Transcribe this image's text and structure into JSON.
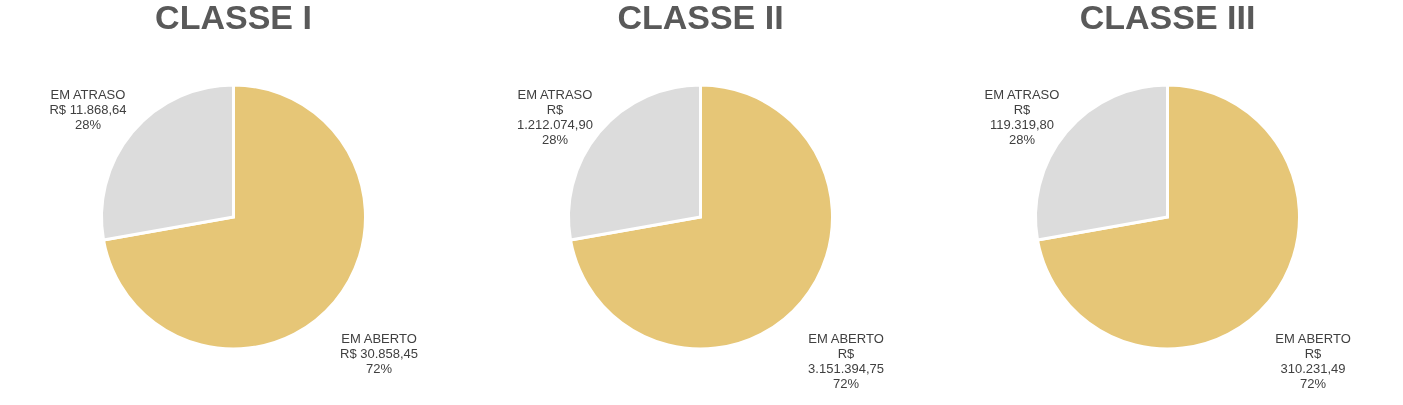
{
  "chart_data": [
    {
      "type": "pie",
      "title": "CLASSE I",
      "categories": [
        "EM ABERTO",
        "EM ATRASO"
      ],
      "values": [
        30858.45,
        11868.64
      ],
      "colors": [
        "#e6c677",
        "#dcdcdc"
      ],
      "value_labels": [
        "R$ 30.858,45\n72%",
        "R$ 11.868,64\n28%"
      ]
    },
    {
      "type": "pie",
      "title": "CLASSE II",
      "categories": [
        "EM ABERTO",
        "EM ATRASO"
      ],
      "values": [
        3151394.75,
        1212074.9
      ],
      "colors": [
        "#e6c677",
        "#dcdcdc"
      ],
      "value_labels": [
        "R$\n3.151.394,75\n72%",
        "R$\n1.212.074,90\n28%"
      ]
    },
    {
      "type": "pie",
      "title": "CLASSE III",
      "categories": [
        "EM ABERTO",
        "EM ATRASO"
      ],
      "values": [
        310231.49,
        119319.8
      ],
      "colors": [
        "#e6c677",
        "#dcdcdc"
      ],
      "value_labels": [
        "R$\n310.231,49\n72%",
        "R$\n119.319,80\n28%"
      ]
    }
  ]
}
